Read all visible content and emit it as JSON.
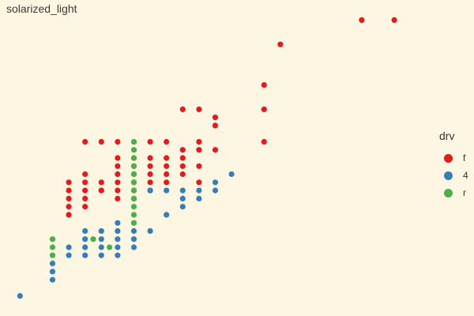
{
  "title": "solarized_light",
  "chart_data": {
    "type": "scatter",
    "title": "solarized_light",
    "xlabel": "",
    "ylabel": "",
    "grid": false,
    "legend": {
      "title": "drv",
      "placement": "right"
    },
    "xlim": [
      1.3,
      6.3
    ],
    "ylim": [
      8.5,
      45.5
    ],
    "series": [
      {
        "name": "f",
        "color": "#e41a1c",
        "points": [
          [
            5.6,
            44
          ],
          [
            6.0,
            44
          ],
          [
            4.6,
            41
          ],
          [
            4.4,
            36
          ],
          [
            4.4,
            33
          ],
          [
            3.4,
            33
          ],
          [
            3.6,
            33
          ],
          [
            3.8,
            32
          ],
          [
            3.8,
            31
          ],
          [
            4.4,
            29
          ],
          [
            3.6,
            29
          ],
          [
            3.6,
            28
          ],
          [
            3.8,
            28
          ],
          [
            2.2,
            29
          ],
          [
            2.4,
            29
          ],
          [
            2.6,
            29
          ],
          [
            2.8,
            29
          ],
          [
            3.0,
            29
          ],
          [
            3.2,
            29
          ],
          [
            3.4,
            28
          ],
          [
            3.4,
            27
          ],
          [
            3.4,
            26
          ],
          [
            3.6,
            26
          ],
          [
            2.6,
            27
          ],
          [
            2.8,
            27
          ],
          [
            3.0,
            27
          ],
          [
            3.2,
            27
          ],
          [
            2.8,
            26
          ],
          [
            3.0,
            26
          ],
          [
            3.2,
            26
          ],
          [
            2.6,
            26
          ],
          [
            2.8,
            25
          ],
          [
            3.0,
            25
          ],
          [
            2.2,
            25
          ],
          [
            2.2,
            24
          ],
          [
            2.0,
            24
          ],
          [
            2.0,
            23
          ],
          [
            2.2,
            23
          ],
          [
            2.4,
            24
          ],
          [
            2.6,
            24
          ],
          [
            2.8,
            24
          ],
          [
            3.0,
            24
          ],
          [
            3.2,
            24
          ],
          [
            2.6,
            25
          ],
          [
            2.4,
            23
          ],
          [
            2.6,
            23
          ],
          [
            2.8,
            23
          ],
          [
            3.0,
            23
          ],
          [
            2.2,
            22
          ],
          [
            2.0,
            22
          ],
          [
            2.0,
            21
          ],
          [
            2.0,
            20
          ],
          [
            2.2,
            21
          ],
          [
            2.4,
            23
          ],
          [
            2.6,
            22
          ],
          [
            2.8,
            22
          ],
          [
            3.2,
            25
          ],
          [
            3.4,
            25
          ],
          [
            3.6,
            24
          ]
        ]
      },
      {
        "name": "4",
        "color": "#377eb8",
        "points": [
          [
            1.4,
            10
          ],
          [
            1.8,
            12
          ],
          [
            1.8,
            13
          ],
          [
            1.8,
            14
          ],
          [
            2.0,
            15
          ],
          [
            2.0,
            16
          ],
          [
            2.2,
            15
          ],
          [
            2.2,
            16
          ],
          [
            2.2,
            17
          ],
          [
            2.4,
            15
          ],
          [
            2.4,
            16
          ],
          [
            2.4,
            17
          ],
          [
            2.6,
            15
          ],
          [
            2.6,
            16
          ],
          [
            2.6,
            17
          ],
          [
            2.6,
            18
          ],
          [
            2.8,
            16
          ],
          [
            2.8,
            17
          ],
          [
            2.8,
            18
          ],
          [
            3.0,
            18
          ],
          [
            2.4,
            18
          ],
          [
            2.2,
            18
          ],
          [
            2.6,
            19
          ],
          [
            2.8,
            19
          ],
          [
            3.2,
            20
          ],
          [
            3.4,
            21
          ],
          [
            3.4,
            22
          ],
          [
            3.4,
            23
          ],
          [
            3.6,
            23
          ],
          [
            3.8,
            23
          ],
          [
            3.6,
            22
          ],
          [
            3.8,
            24
          ],
          [
            4.0,
            25
          ],
          [
            3.2,
            23
          ],
          [
            3.0,
            23
          ]
        ]
      },
      {
        "name": "r",
        "color": "#4daf4a",
        "points": [
          [
            1.8,
            15
          ],
          [
            1.8,
            16
          ],
          [
            1.8,
            17
          ],
          [
            2.3,
            17
          ],
          [
            2.5,
            16
          ],
          [
            2.8,
            19
          ],
          [
            2.8,
            20
          ],
          [
            2.8,
            21
          ],
          [
            2.8,
            22
          ],
          [
            2.8,
            23
          ],
          [
            2.8,
            24
          ],
          [
            2.8,
            25
          ],
          [
            2.8,
            26
          ],
          [
            2.8,
            27
          ],
          [
            2.8,
            28
          ],
          [
            2.8,
            29
          ]
        ]
      }
    ]
  }
}
